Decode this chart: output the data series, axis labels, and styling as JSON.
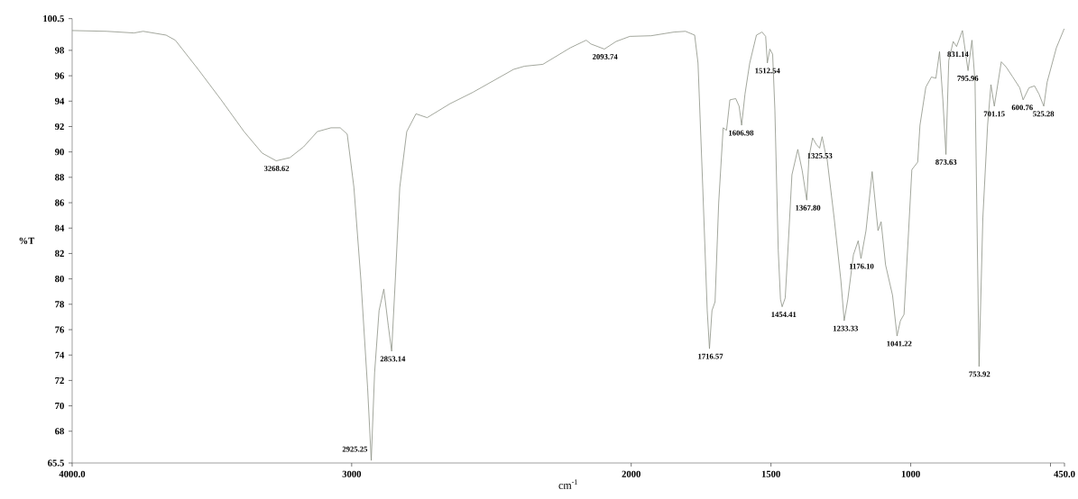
{
  "chart_data": {
    "type": "line",
    "xlabel": "cm$^{-1}$",
    "ylabel": "%T",
    "color": "#8c9184",
    "x": [
      4000,
      3877,
      3779,
      3746,
      3664,
      3631,
      3549,
      3467,
      3385,
      3320,
      3270,
      3221,
      3172,
      3123,
      3074,
      3041,
      3016,
      2992,
      2967,
      2943,
      2930,
      2918,
      2902,
      2885,
      2869,
      2857,
      2844,
      2828,
      2803,
      2770,
      2730,
      2648,
      2566,
      2421,
      2382,
      2316,
      2218,
      2161,
      2144,
      2096,
      2054,
      2005,
      1929,
      1847,
      1806,
      1773,
      1761,
      1744,
      1728,
      1720,
      1711,
      1700,
      1687,
      1671,
      1659,
      1647,
      1626,
      1614,
      1605,
      1593,
      1576,
      1552,
      1532,
      1519,
      1513,
      1504,
      1494,
      1486,
      1474,
      1466,
      1460,
      1449,
      1438,
      1425,
      1404,
      1388,
      1372,
      1364,
      1351,
      1338,
      1326,
      1317,
      1306,
      1299,
      1274,
      1250,
      1238,
      1225,
      1205,
      1188,
      1178,
      1160,
      1138,
      1117,
      1106,
      1090,
      1065,
      1049,
      1037,
      1024,
      1008,
      996,
      975,
      967,
      946,
      926,
      910,
      897,
      885,
      874,
      864,
      848,
      836,
      815,
      795,
      781,
      770,
      755.5,
      742,
      725,
      713,
      701,
      676,
      659,
      635,
      610,
      598,
      577,
      557,
      541,
      524,
      512,
      479,
      451
    ],
    "values": [
      99.56,
      99.5,
      99.37,
      99.5,
      99.2,
      98.8,
      96.5,
      94.1,
      91.6,
      89.9,
      89.3,
      89.55,
      90.4,
      91.6,
      91.9,
      91.9,
      91.4,
      87.2,
      79.9,
      71.4,
      65.7,
      72.6,
      77.5,
      79.2,
      76.3,
      74.3,
      79.9,
      87.2,
      91.6,
      93.0,
      92.7,
      93.8,
      94.7,
      96.5,
      96.75,
      96.9,
      98.2,
      98.8,
      98.5,
      98.1,
      98.7,
      99.1,
      99.15,
      99.44,
      99.5,
      99.2,
      97.0,
      87.2,
      77.5,
      74.5,
      77.5,
      78.2,
      86.0,
      91.9,
      91.7,
      94.1,
      94.2,
      93.6,
      92.1,
      94.55,
      97.0,
      99.2,
      99.44,
      99.1,
      97.0,
      98.1,
      97.7,
      93.3,
      82.3,
      78.4,
      77.8,
      78.5,
      82.8,
      88.2,
      90.2,
      88.5,
      86.2,
      89.6,
      91.1,
      90.6,
      90.3,
      91.2,
      90.0,
      89.4,
      84.8,
      79.9,
      76.7,
      78.4,
      81.9,
      83.0,
      81.6,
      83.8,
      88.45,
      83.8,
      84.5,
      81.1,
      78.7,
      75.5,
      76.7,
      77.2,
      83.6,
      88.6,
      89.2,
      92.1,
      95.1,
      95.9,
      95.8,
      97.9,
      94.1,
      89.8,
      97.2,
      98.7,
      98.3,
      99.56,
      96.4,
      98.8,
      95.5,
      73.1,
      84.8,
      92.1,
      95.3,
      93.6,
      97.1,
      96.7,
      95.9,
      95.05,
      94.1,
      95.05,
      95.2,
      94.55,
      93.6,
      95.5,
      98.2,
      99.7
    ],
    "xlim": [
      4000,
      450
    ],
    "ylim": [
      65.5,
      100.5
    ],
    "xticks": [
      {
        "value": 4000,
        "label": "4000.0"
      },
      3000,
      2000,
      1500,
      1000,
      {
        "value": 500,
        "label": null
      },
      {
        "value": 450,
        "label": "450.0"
      }
    ],
    "yticks": [
      65.5,
      68,
      70,
      72,
      74,
      76,
      78,
      80,
      82,
      84,
      86,
      88,
      90,
      92,
      94,
      96,
      98,
      100.5
    ],
    "annotations": [
      {
        "text": "3268.62",
        "x": 3268.62,
        "y": 89.3
      },
      {
        "text": "2925.25",
        "x": 2925.25,
        "y": 65.7
      },
      {
        "text": "2853.14",
        "x": 2853.14,
        "y": 74.3
      },
      {
        "text": "2093.74",
        "x": 2093.74,
        "y": 98.1
      },
      {
        "text": "1716.57",
        "x": 1716.57,
        "y": 74.5
      },
      {
        "text": "1606.98",
        "x": 1606.98,
        "y": 92.1
      },
      {
        "text": "1512.54",
        "x": 1512.54,
        "y": 97.0
      },
      {
        "text": "1454.41",
        "x": 1454.41,
        "y": 77.8
      },
      {
        "text": "1367.80",
        "x": 1367.8,
        "y": 86.2
      },
      {
        "text": "1325.53",
        "x": 1325.53,
        "y": 90.3
      },
      {
        "text": "1233.33",
        "x": 1233.33,
        "y": 76.7
      },
      {
        "text": "1176.10",
        "x": 1176.1,
        "y": 81.6
      },
      {
        "text": "1041.22",
        "x": 1041.22,
        "y": 75.5
      },
      {
        "text": "873.63",
        "x": 873.63,
        "y": 89.8
      },
      {
        "text": "831.14",
        "x": 831.14,
        "y": 98.3
      },
      {
        "text": "795.96",
        "x": 795.96,
        "y": 96.4
      },
      {
        "text": "753.92",
        "x": 753.92,
        "y": 73.1
      },
      {
        "text": "701.15",
        "x": 701.15,
        "y": 93.6
      },
      {
        "text": "600.76",
        "x": 600.76,
        "y": 94.1
      },
      {
        "text": "525.28",
        "x": 525.28,
        "y": 93.6
      }
    ]
  }
}
